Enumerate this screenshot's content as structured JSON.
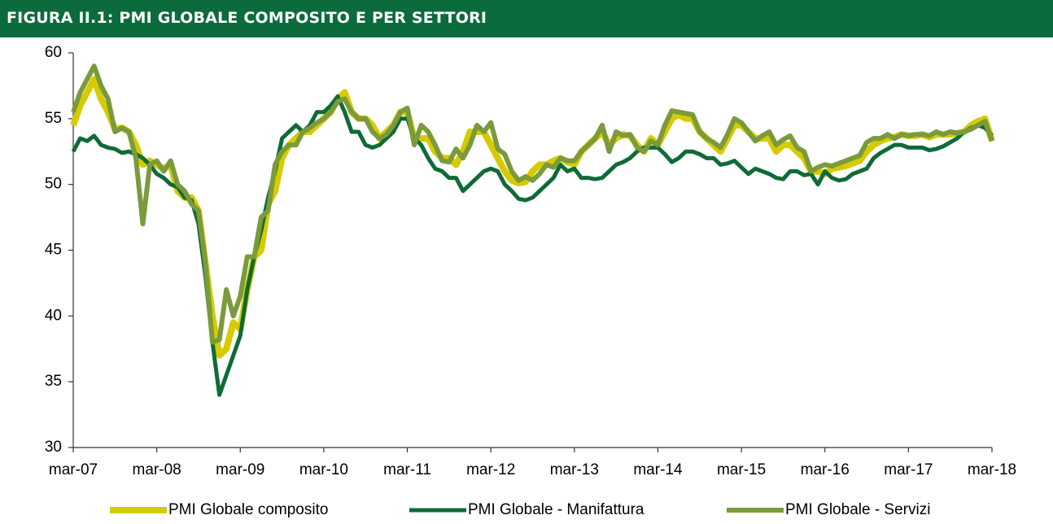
{
  "chart_data": {
    "type": "line",
    "title": "FIGURA II.1: PMI GLOBALE COMPOSITO E PER SETTORI",
    "categories": [
      "mar-07",
      null,
      null,
      null,
      null,
      null,
      null,
      null,
      null,
      null,
      null,
      null,
      "mar-08",
      null,
      null,
      null,
      null,
      null,
      null,
      null,
      null,
      null,
      null,
      null,
      "mar-09",
      null,
      null,
      null,
      null,
      null,
      null,
      null,
      null,
      null,
      null,
      null,
      "mar-10",
      null,
      null,
      null,
      null,
      null,
      null,
      null,
      null,
      null,
      null,
      null,
      "mar-11",
      null,
      null,
      null,
      null,
      null,
      null,
      null,
      null,
      null,
      null,
      null,
      "mar-12",
      null,
      null,
      null,
      null,
      null,
      null,
      null,
      null,
      null,
      null,
      null,
      "mar-13",
      null,
      null,
      null,
      null,
      null,
      null,
      null,
      null,
      null,
      null,
      null,
      "mar-14",
      null,
      null,
      null,
      null,
      null,
      null,
      null,
      null,
      null,
      null,
      null,
      "mar-15",
      null,
      null,
      null,
      null,
      null,
      null,
      null,
      null,
      null,
      null,
      null,
      "mar-16",
      null,
      null,
      null,
      null,
      null,
      null,
      null,
      null,
      null,
      null,
      null,
      "mar-17",
      null,
      null,
      null,
      null,
      null,
      null,
      null,
      null,
      null,
      null,
      null,
      "mar-18"
    ],
    "series": [
      {
        "name": "PMI Globale composito",
        "color": "#d6cb00",
        "values": [
          54.5,
          56,
          57,
          58,
          56.5,
          55.5,
          54.2,
          54.3,
          54,
          53,
          51.5,
          51.8,
          51.5,
          51.2,
          51.5,
          49.5,
          49,
          49,
          48,
          44,
          40,
          37,
          37.5,
          39.5,
          39,
          42,
          44.5,
          45,
          48.5,
          49.5,
          52,
          53,
          53.5,
          54,
          54,
          54.5,
          55,
          55.5,
          56.5,
          57,
          55.5,
          55,
          55,
          54.5,
          53.5,
          54,
          54.5,
          55.5,
          55.5,
          53.5,
          53.5,
          53.5,
          52.5,
          52,
          52,
          51.5,
          52.5,
          54,
          54,
          54,
          53,
          52,
          51,
          50.3,
          50.1,
          50.2,
          51,
          51.5,
          51.5,
          51.8,
          52,
          51.7,
          51.5,
          52.5,
          53,
          53.5,
          54,
          53,
          53.5,
          53.8,
          53.7,
          53,
          52.5,
          53.5,
          53,
          54,
          55,
          55.3,
          55,
          55,
          54,
          53.5,
          53,
          52.5,
          53.5,
          54.5,
          54.5,
          54,
          53.5,
          53.5,
          53.5,
          52.5,
          53,
          53,
          52.5,
          52,
          51,
          51,
          50.8,
          51.2,
          51.3,
          51.4,
          51.6,
          51.8,
          52.5,
          53,
          53.3,
          53.5,
          53.6,
          53.8,
          53.7,
          53.7,
          53.8,
          53.6,
          53.8,
          53.8,
          53.8,
          53.9,
          54,
          54.5,
          54.8,
          55,
          53.3
        ]
      },
      {
        "name": "PMI Globale - Manifattura",
        "color": "#0f6b35",
        "values": [
          52.5,
          53.5,
          53.3,
          53.7,
          53,
          52.8,
          52.7,
          52.4,
          52.5,
          52.3,
          52,
          51.5,
          50.8,
          50.5,
          50,
          49.8,
          49,
          48.8,
          47,
          43,
          38,
          34,
          35.5,
          37,
          38.5,
          42,
          44.5,
          46.5,
          49,
          51,
          53.5,
          54,
          54.5,
          54,
          54.5,
          55.5,
          55.5,
          56,
          56.7,
          55.5,
          54,
          54,
          53,
          52.8,
          53,
          53.5,
          54,
          55,
          55,
          53.5,
          53,
          52,
          51.2,
          51,
          50.5,
          50.5,
          49.5,
          50,
          50.5,
          51,
          51.2,
          51,
          50,
          49.5,
          48.9,
          48.8,
          49,
          49.5,
          50,
          50.5,
          51.5,
          51,
          51.2,
          50.5,
          50.5,
          50.4,
          50.5,
          51,
          51.5,
          51.7,
          52,
          52.5,
          52.8,
          52.8,
          52.8,
          52.3,
          51.7,
          52,
          52.5,
          52.5,
          52.3,
          52,
          52,
          51.5,
          51.6,
          51.8,
          51.3,
          50.8,
          51.2,
          51,
          50.8,
          50.5,
          50.4,
          51,
          51,
          50.7,
          50.8,
          50,
          51,
          50.5,
          50.3,
          50.4,
          50.8,
          51,
          51.2,
          52,
          52.4,
          52.7,
          53,
          53,
          52.8,
          52.8,
          52.8,
          52.6,
          52.7,
          52.9,
          53.2,
          53.5,
          54,
          54.3,
          54.5,
          54.3,
          53.7
        ]
      },
      {
        "name": "PMI Globale - Servizi",
        "color": "#7b9a3c",
        "values": [
          55.5,
          57,
          58,
          59,
          57.5,
          56.5,
          54,
          54.3,
          54,
          52,
          47,
          51.5,
          51.8,
          51,
          51.8,
          50,
          49.5,
          48.5,
          48,
          44,
          38,
          38.2,
          42,
          40,
          41.5,
          44.5,
          44.5,
          47.5,
          48,
          51.5,
          52.5,
          53,
          53,
          54,
          54.3,
          54.7,
          55,
          55.5,
          56.3,
          56.5,
          55.5,
          55,
          55,
          54,
          53.5,
          53.8,
          54.5,
          55.5,
          55.8,
          53,
          54.5,
          54,
          53,
          51.8,
          51.7,
          52.7,
          52,
          53,
          54.5,
          54,
          54.7,
          52.7,
          52.3,
          51,
          50.3,
          50.6,
          50.3,
          50.8,
          51.5,
          51.3,
          52,
          51.8,
          51.8,
          52.5,
          53,
          53.5,
          54.5,
          52.5,
          54,
          53.7,
          53.8,
          52.8,
          52.5,
          53.3,
          53,
          54.5,
          55.6,
          55.5,
          55.4,
          55.3,
          54,
          53.5,
          53.2,
          52.8,
          53.8,
          55,
          54.7,
          54,
          53.3,
          53.7,
          54,
          53,
          53.4,
          53.7,
          52.8,
          52.5,
          51,
          51.3,
          51.5,
          51.4,
          51.6,
          51.8,
          52,
          52.2,
          53.2,
          53.5,
          53.5,
          53.8,
          53.5,
          53.8,
          53.7,
          53.8,
          53.8,
          53.7,
          54,
          53.8,
          54,
          53.9,
          54,
          54.2,
          54.5,
          54.8,
          53.3
        ]
      }
    ],
    "ylim": [
      30,
      60
    ],
    "yticks": [
      30,
      35,
      40,
      45,
      50,
      55,
      60
    ],
    "grid": false
  }
}
